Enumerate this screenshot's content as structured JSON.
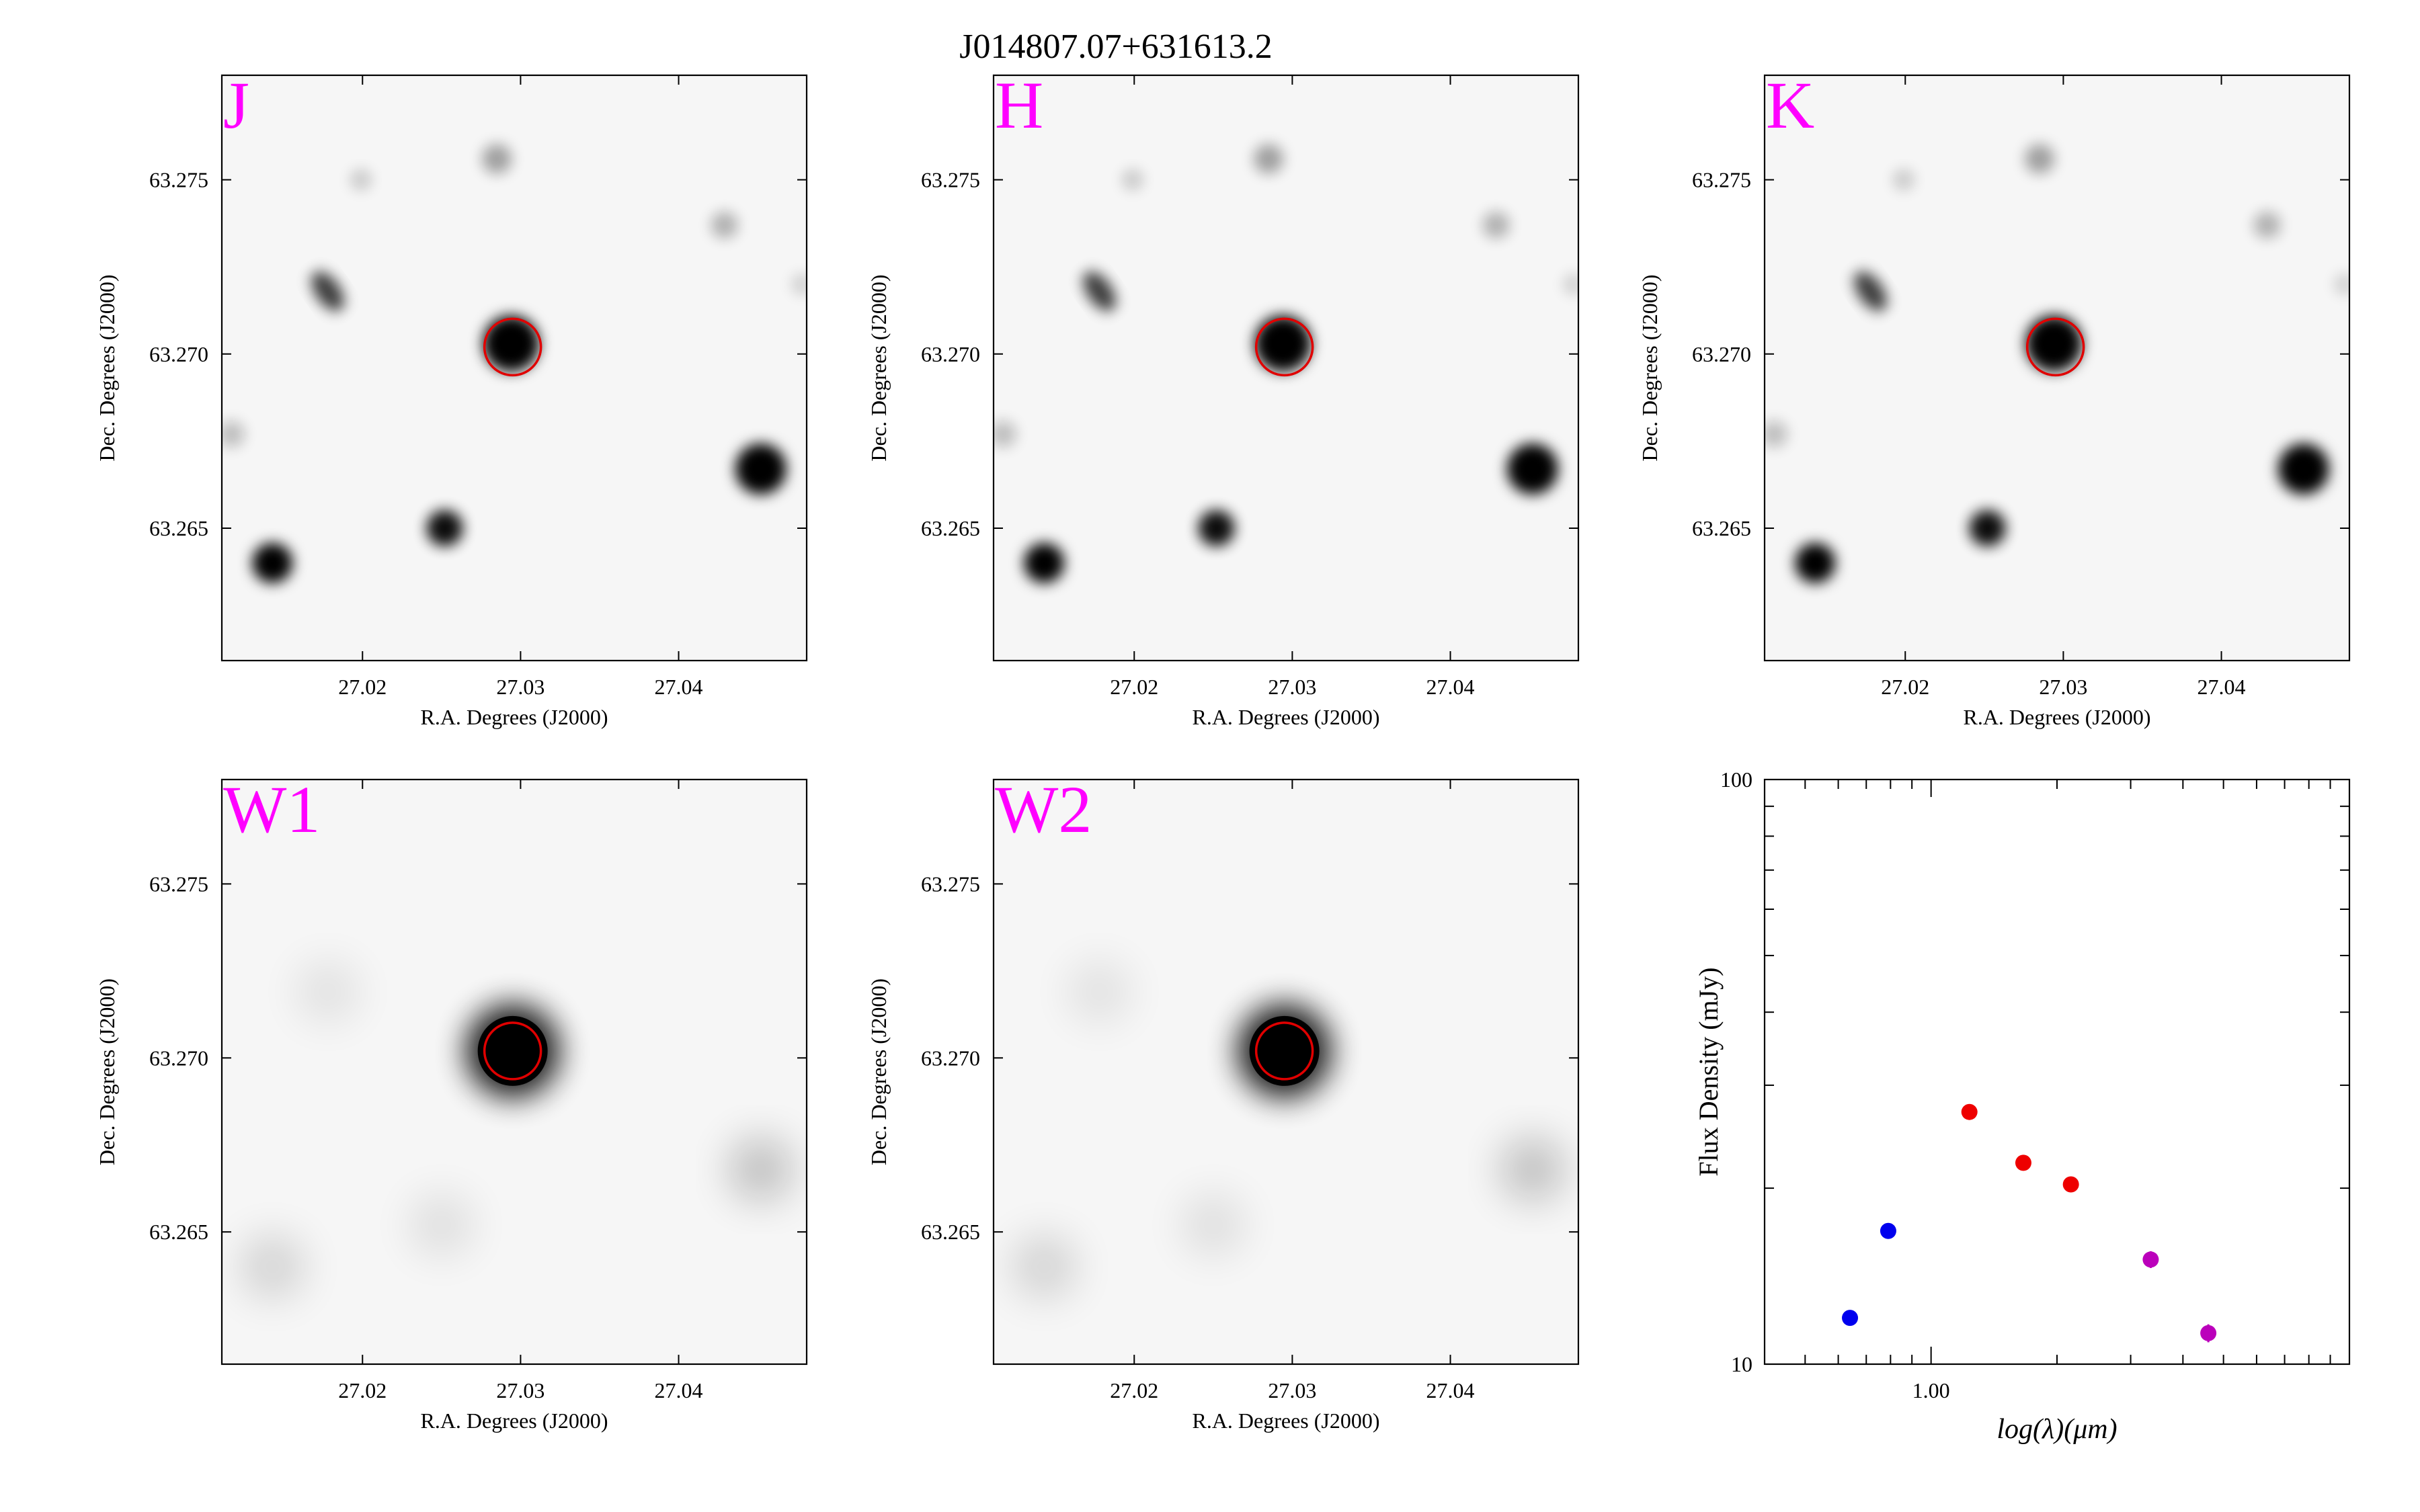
{
  "figure": {
    "title": "J014807.07+631613.2"
  },
  "colors": {
    "band_label": "#ff00ff",
    "aperture": "#e00000",
    "optical": "#0000ee",
    "nir": "#ee0000",
    "mir": "#bb00bb"
  },
  "chart_data": [
    {
      "type": "image",
      "band": "J",
      "xlabel": "R.A. Degrees (J2000)",
      "ylabel": "Dec. Degrees (J2000)",
      "xlim": [
        27.0111,
        27.0481
      ],
      "ylim": [
        63.2612,
        63.278
      ],
      "xticks": [
        "27.02",
        "27.03",
        "27.04"
      ],
      "yticks": [
        "63.265",
        "63.270",
        "63.275"
      ],
      "xtick_values": [
        27.02,
        27.03,
        27.04
      ],
      "ytick_values": [
        63.265,
        63.27,
        63.275
      ]
    },
    {
      "type": "image",
      "band": "H",
      "xlabel": "R.A. Degrees (J2000)",
      "ylabel": "Dec. Degrees (J2000)",
      "xlim": [
        27.0111,
        27.0481
      ],
      "ylim": [
        63.2612,
        63.278
      ],
      "xticks": [
        "27.02",
        "27.03",
        "27.04"
      ],
      "yticks": [
        "63.265",
        "63.270",
        "63.275"
      ],
      "xtick_values": [
        27.02,
        27.03,
        27.04
      ],
      "ytick_values": [
        63.265,
        63.27,
        63.275
      ]
    },
    {
      "type": "image",
      "band": "K",
      "xlabel": "R.A. Degrees (J2000)",
      "ylabel": "Dec. Degrees (J2000)",
      "xlim": [
        27.0111,
        27.0481
      ],
      "ylim": [
        63.2612,
        63.278
      ],
      "xticks": [
        "27.02",
        "27.03",
        "27.04"
      ],
      "yticks": [
        "63.265",
        "63.270",
        "63.275"
      ],
      "xtick_values": [
        27.02,
        27.03,
        27.04
      ],
      "ytick_values": [
        63.265,
        63.27,
        63.275
      ]
    },
    {
      "type": "image",
      "band": "W1",
      "xlabel": "R.A. Degrees (J2000)",
      "ylabel": "Dec. Degrees (J2000)",
      "xlim": [
        27.0111,
        27.0481
      ],
      "ylim": [
        63.2612,
        63.278
      ],
      "xticks": [
        "27.02",
        "27.03",
        "27.04"
      ],
      "yticks": [
        "63.265",
        "63.270",
        "63.275"
      ],
      "xtick_values": [
        27.02,
        27.03,
        27.04
      ],
      "ytick_values": [
        63.265,
        63.27,
        63.275
      ]
    },
    {
      "type": "image",
      "band": "W2",
      "xlabel": "R.A. Degrees (J2000)",
      "ylabel": "Dec. Degrees (J2000)",
      "xlim": [
        27.0111,
        27.0481
      ],
      "ylim": [
        63.2612,
        63.278
      ],
      "xticks": [
        "27.02",
        "27.03",
        "27.04"
      ],
      "yticks": [
        "63.265",
        "63.270",
        "63.275"
      ],
      "xtick_values": [
        27.02,
        27.03,
        27.04
      ],
      "ytick_values": [
        63.265,
        63.27,
        63.275
      ]
    },
    {
      "type": "scatter",
      "xscale": "log",
      "yscale": "log",
      "xlabel": "log(λ)(μm)",
      "ylabel": "Flux Density (mJy)",
      "xlim": [
        0.4,
        10
      ],
      "ylim": [
        10,
        100
      ],
      "xticks": [
        "1.00"
      ],
      "xtick_values": [
        1.0
      ],
      "yticks": [
        "10",
        "100"
      ],
      "ytick_values": [
        10,
        100
      ],
      "series": [
        {
          "color": "#0000ee",
          "x": [
            0.64,
            0.79
          ],
          "y": [
            12.0,
            16.9
          ]
        },
        {
          "color": "#ee0000",
          "x": [
            1.235,
            1.662,
            2.159
          ],
          "y": [
            27.0,
            22.1,
            20.3
          ]
        },
        {
          "color": "#bb00bb",
          "x": [
            3.35,
            4.6
          ],
          "y": [
            15.1,
            11.3
          ],
          "yerr": [
            0.5,
            0.4
          ]
        }
      ]
    }
  ]
}
